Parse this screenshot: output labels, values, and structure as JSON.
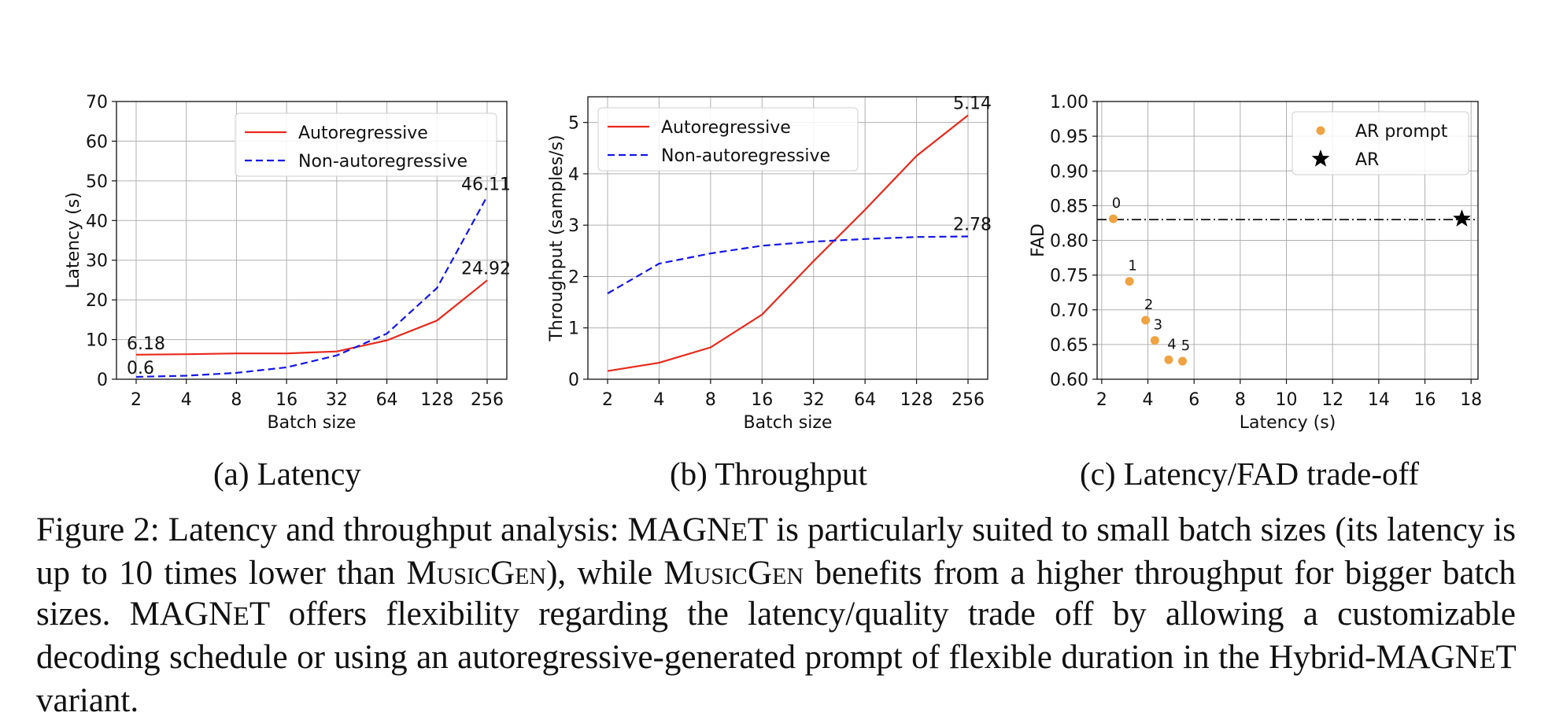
{
  "chart_data": [
    {
      "type": "line",
      "xlabel": "Batch size",
      "ylabel": "Latency (s)",
      "categories": [
        "2",
        "4",
        "8",
        "16",
        "32",
        "64",
        "128",
        "256"
      ],
      "ylim": [
        0,
        70
      ],
      "yticks": [
        0,
        10,
        20,
        30,
        40,
        50,
        60,
        70
      ],
      "grid": true,
      "legend_position": "top-right",
      "series": [
        {
          "name": "Autoregressive",
          "color": "#e8291c",
          "dash": "solid",
          "values": [
            6.18,
            6.3,
            6.5,
            6.5,
            7.0,
            9.8,
            14.8,
            24.92
          ]
        },
        {
          "name": "Non-autoregressive",
          "color": "#1515e8",
          "dash": "dashed",
          "values": [
            0.6,
            0.9,
            1.6,
            3.0,
            6.0,
            11.5,
            23.0,
            46.11
          ]
        }
      ],
      "annotations": [
        {
          "text": "6.18",
          "series": 0,
          "index": 0
        },
        {
          "text": "0.6",
          "series": 1,
          "index": 0
        },
        {
          "text": "46.11",
          "series": 1,
          "index": 7
        },
        {
          "text": "24.92",
          "series": 0,
          "index": 7
        }
      ]
    },
    {
      "type": "line",
      "xlabel": "Batch size",
      "ylabel": "Throughput (samples/s)",
      "categories": [
        "2",
        "4",
        "8",
        "16",
        "32",
        "64",
        "128",
        "256"
      ],
      "ylim": [
        0,
        5.5
      ],
      "yticks": [
        0,
        1,
        2,
        3,
        4,
        5
      ],
      "grid": true,
      "legend_position": "top-left",
      "series": [
        {
          "name": "Autoregressive",
          "color": "#e8291c",
          "dash": "solid",
          "values": [
            0.16,
            0.32,
            0.62,
            1.26,
            2.3,
            3.3,
            4.35,
            5.14
          ]
        },
        {
          "name": "Non-autoregressive",
          "color": "#1515e8",
          "dash": "dashed",
          "values": [
            1.67,
            2.25,
            2.45,
            2.6,
            2.68,
            2.73,
            2.77,
            2.78
          ]
        }
      ],
      "annotations": [
        {
          "text": "5.14",
          "series": 0,
          "index": 7
        },
        {
          "text": "2.78",
          "series": 1,
          "index": 7
        }
      ]
    },
    {
      "type": "scatter",
      "xlabel": "Latency (s)",
      "ylabel": "FAD",
      "xlim": [
        1.8,
        18.3
      ],
      "ylim": [
        0.6,
        1.0
      ],
      "xticks": [
        2,
        4,
        6,
        8,
        10,
        12,
        14,
        16,
        18
      ],
      "yticks": [
        "0.60",
        "0.65",
        "0.70",
        "0.75",
        "0.80",
        "0.85",
        "0.90",
        "0.95",
        "1.00"
      ],
      "grid": true,
      "legend_position": "top-right",
      "series": [
        {
          "name": "AR prompt",
          "color": "#efa342",
          "marker": "circle",
          "points": [
            {
              "x": 2.5,
              "y": 0.831,
              "label": "0"
            },
            {
              "x": 3.2,
              "y": 0.741,
              "label": "1"
            },
            {
              "x": 3.9,
              "y": 0.685,
              "label": "2"
            },
            {
              "x": 4.3,
              "y": 0.656,
              "label": "3"
            },
            {
              "x": 4.9,
              "y": 0.628,
              "label": "4"
            },
            {
              "x": 5.5,
              "y": 0.626,
              "label": "5"
            }
          ]
        },
        {
          "name": "AR",
          "color": "#000000",
          "marker": "star",
          "points": [
            {
              "x": 17.6,
              "y": 0.831
            }
          ]
        }
      ],
      "reference_line": {
        "y": 0.83,
        "style": "dashdot",
        "color": "#000000"
      }
    }
  ],
  "subcaptions": {
    "a": "(a) Latency",
    "b": "(b) Throughput",
    "c": "(c) Latency/FAD trade-off"
  },
  "caption": {
    "p1": "Figure 2: Latency and throughput analysis: ",
    "mag_a": "MAGN",
    "mag_b": "E",
    "mag_c": "T",
    "p2": " is particularly suited to small batch sizes (its latency is up to 10 times lower than ",
    "musicgen": "MusicGen",
    "p3": "), while ",
    "p4": " benefits from a higher throughput for bigger batch sizes. ",
    "p5": " offers flexibility regarding the latency/quality trade off by allowing a customizable decoding schedule or using an autoregressive-generated prompt of flexible duration in the Hybrid-",
    "p6": " variant."
  }
}
